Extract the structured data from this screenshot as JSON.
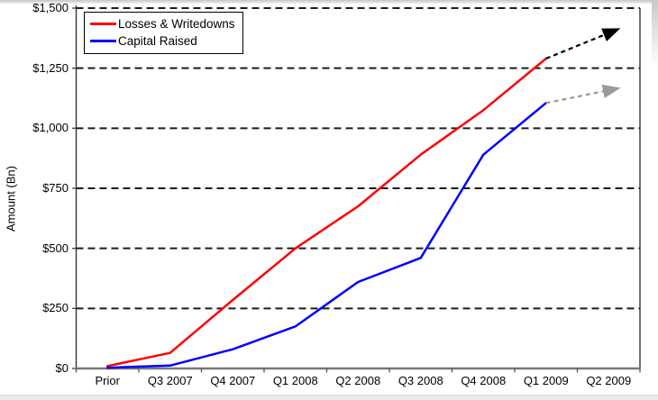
{
  "chart_data": {
    "type": "line",
    "title": "",
    "ylabel": "Amount (Bn)",
    "xlabel": "",
    "categories": [
      "Prior",
      "Q3 2007",
      "Q4 2007",
      "Q1 2008",
      "Q2 2008",
      "Q3 2008",
      "Q4 2008",
      "Q1 2009",
      "Q2 2009"
    ],
    "y_ticks": [
      "$0",
      "$250",
      "$500",
      "$750",
      "$1,000",
      "$1,250",
      "$1,500"
    ],
    "ylim": [
      0,
      1500
    ],
    "grid": "horizontal-dashed-black",
    "legend_position": "top-left-inside",
    "series": [
      {
        "name": "Losses & Writedowns",
        "color": "#ff0000",
        "values": [
          10,
          65,
          285,
          500,
          675,
          890,
          1075,
          1290
        ],
        "solid_through": "Q1 2009",
        "projection": {
          "to_category": "Q2 2009",
          "value": 1410,
          "style": "dashed-arrow",
          "color": "#000000"
        }
      },
      {
        "name": "Capital Raised",
        "color": "#0000ff",
        "values": [
          3,
          12,
          80,
          175,
          360,
          460,
          890,
          1105
        ],
        "solid_through": "Q1 2009",
        "projection": {
          "to_category": "Q2 2009",
          "value": 1165,
          "style": "dashed-arrow",
          "color": "#9a9a9a"
        }
      }
    ]
  }
}
